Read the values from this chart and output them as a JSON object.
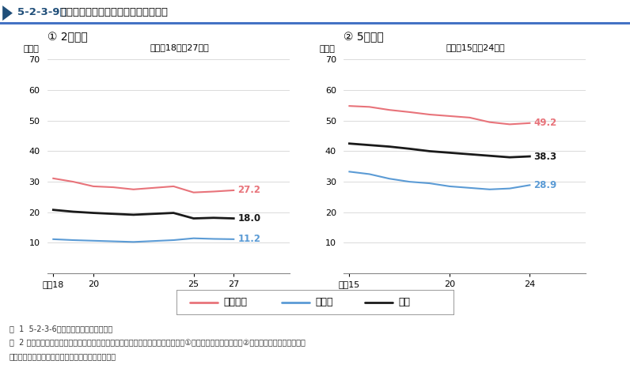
{
  "title_prefix": "5-2-3-9図",
  "title_main": "出所受刑者の出所事由別再入率の推移",
  "subtitle_left": "① 2年以内",
  "subtitle_right": "② 5年以内",
  "period_left": "（平成18年～27年）",
  "period_right": "（平成15年～24年）",
  "ylabel": "（％）",
  "chart1": {
    "x_ticks": [
      18,
      19,
      20,
      21,
      22,
      23,
      24,
      25,
      26,
      27
    ],
    "x_tick_display": [
      18,
      20,
      25,
      27
    ],
    "x_first_label": "平成18",
    "manki": [
      31.1,
      30.0,
      28.5,
      28.2,
      27.5,
      28.0,
      28.5,
      26.5,
      26.8,
      27.2
    ],
    "kari": [
      11.2,
      10.9,
      10.7,
      10.5,
      10.3,
      10.6,
      10.9,
      11.5,
      11.3,
      11.2
    ],
    "total": [
      20.8,
      20.2,
      19.8,
      19.5,
      19.2,
      19.5,
      19.8,
      18.0,
      18.2,
      18.0
    ],
    "end_labels": {
      "manki": "27.2",
      "kari": "11.2",
      "total": "18.0"
    },
    "ylim": [
      0,
      70
    ],
    "yticks": [
      0,
      10,
      20,
      30,
      40,
      50,
      60,
      70
    ]
  },
  "chart2": {
    "x_ticks": [
      15,
      16,
      17,
      18,
      19,
      20,
      21,
      22,
      23,
      24
    ],
    "x_tick_display": [
      15,
      20,
      24
    ],
    "x_first_label": "平成15",
    "manki": [
      54.8,
      54.5,
      53.5,
      52.8,
      52.0,
      51.5,
      51.0,
      49.5,
      48.8,
      49.2
    ],
    "kari": [
      33.3,
      32.5,
      31.0,
      30.0,
      29.5,
      28.5,
      28.0,
      27.5,
      27.8,
      28.9
    ],
    "total": [
      42.5,
      42.0,
      41.5,
      40.8,
      40.0,
      39.5,
      39.0,
      38.5,
      38.0,
      38.3
    ],
    "end_labels": {
      "manki": "49.2",
      "kari": "28.9",
      "total": "38.3"
    },
    "ylim": [
      0,
      70
    ],
    "yticks": [
      0,
      10,
      20,
      30,
      40,
      50,
      60,
      70
    ]
  },
  "colors": {
    "manki": "#E8737A",
    "kari": "#5B9BD5",
    "total": "#1A1A1A"
  },
  "legend_labels": [
    "満期釈放",
    "仮釈放",
    "総数"
  ],
  "note_lines": [
    "注  1  5-2-3-6図の脚注１及び２に同じ。",
    "　  2 「再入率」は，各年の出所受刑者の人員に占める，出所年を１年目として，①では２年目（翘年）の，②では５年目の，それぞれ年",
    "　　　末までに再入所した者の人員の比率をいう。"
  ],
  "background_color": "#ffffff"
}
